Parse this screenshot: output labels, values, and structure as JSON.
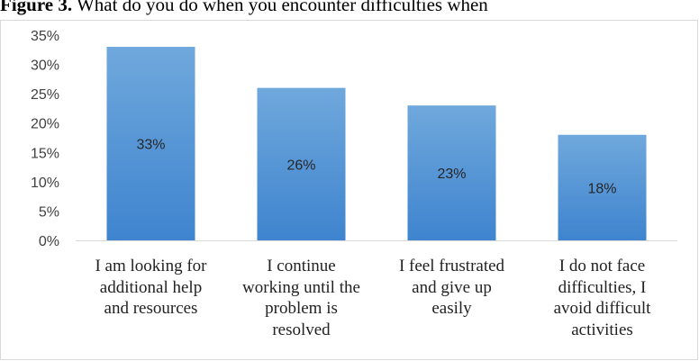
{
  "figure": {
    "caption_label": "Figure 3.",
    "caption_text": " What do you do when you encounter difficulties when"
  },
  "colors": {
    "bar_top": "#6fa8dc",
    "bar_bottom": "#3f84cf",
    "axis": "#d9d9d9"
  },
  "chart_data": {
    "type": "bar",
    "categories": [
      "I am looking for additional help and resources",
      "I continue working until the problem is resolved",
      "I feel frustrated and give up easily",
      "I do not face difficulties, I avoid difficult activities"
    ],
    "category_lines": [
      [
        "I am looking for",
        "additional help",
        "and resources"
      ],
      [
        "I continue",
        "working until the",
        "problem is",
        "resolved"
      ],
      [
        "I feel frustrated",
        "and give up",
        "easily"
      ],
      [
        "I do not face",
        "difficulties, I",
        "avoid difficult",
        "activities"
      ]
    ],
    "values": [
      33,
      26,
      23,
      18
    ],
    "data_labels": [
      "33%",
      "26%",
      "23%",
      "18%"
    ],
    "ylim": [
      0,
      35
    ],
    "yticks": [
      0,
      5,
      10,
      15,
      20,
      25,
      30,
      35
    ],
    "ytick_labels": [
      "0%",
      "5%",
      "10%",
      "15%",
      "20%",
      "25%",
      "30%",
      "35%"
    ],
    "grid": false,
    "legend": "none"
  }
}
